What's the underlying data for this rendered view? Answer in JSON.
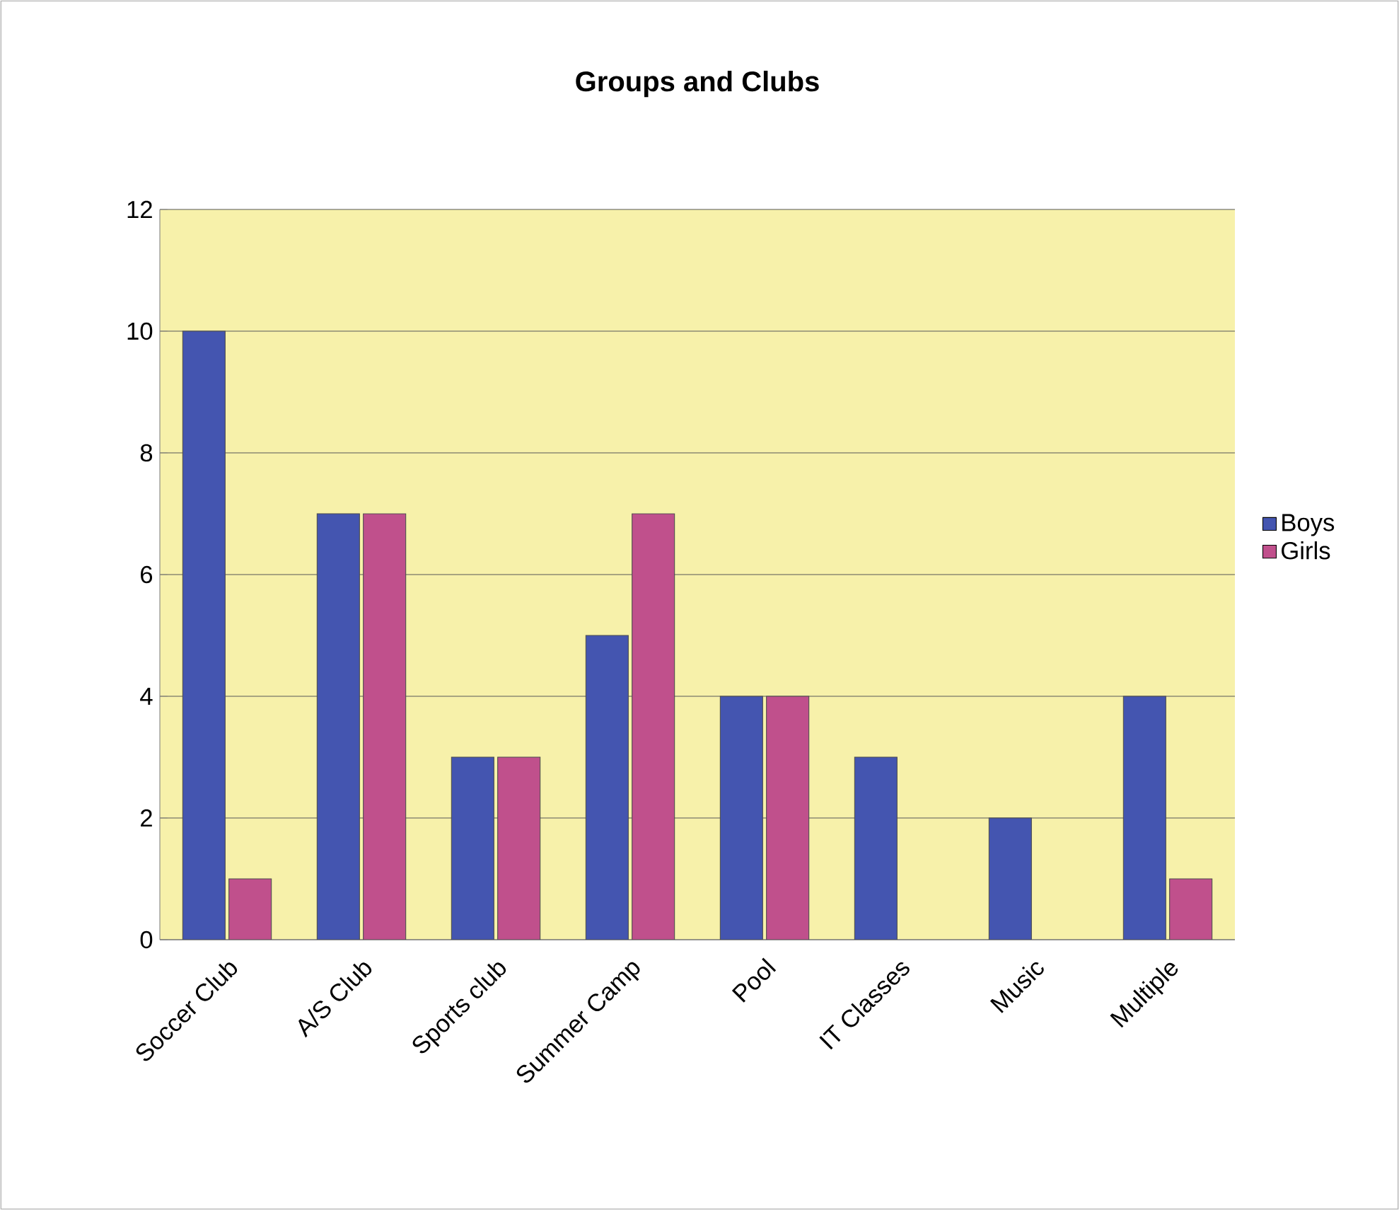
{
  "chart_data": {
    "type": "bar",
    "title": "Groups and Clubs",
    "categories": [
      "Soccer Club",
      "A/S Club",
      "Sports club",
      "Summer Camp",
      "Pool",
      "IT Classes",
      "Music",
      "Multiple"
    ],
    "series": [
      {
        "name": "Boys",
        "color": "#4455b0",
        "values": [
          10,
          7,
          3,
          5,
          4,
          3,
          2,
          4
        ]
      },
      {
        "name": "Girls",
        "color": "#c0508c",
        "values": [
          1,
          7,
          3,
          7,
          4,
          null,
          null,
          1
        ]
      }
    ],
    "ylim": [
      0,
      12
    ],
    "yticks": [
      0,
      2,
      4,
      6,
      8,
      10,
      12
    ],
    "grid": "y",
    "legend": "right"
  }
}
